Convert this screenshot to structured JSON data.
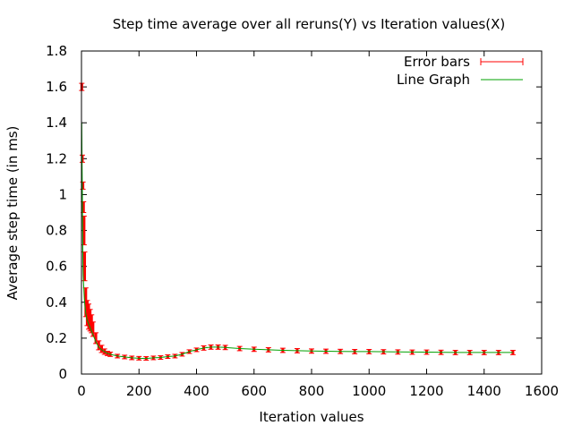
{
  "chart_data": {
    "type": "line",
    "title": "Step time average over all reruns(Y) vs Iteration values(X)",
    "xlabel": "Iteration values",
    "ylabel": "Average step time (in ms)",
    "xlim": [
      0,
      1600
    ],
    "ylim": [
      0,
      1.8
    ],
    "x_ticks": [
      0,
      200,
      400,
      600,
      800,
      1000,
      1200,
      1400,
      1600
    ],
    "y_ticks": [
      0,
      0.2,
      0.4,
      0.6,
      0.8,
      1,
      1.2,
      1.4,
      1.6,
      1.8
    ],
    "x_tick_labels": [
      "0",
      "200",
      "400",
      "600",
      "800",
      "1000",
      "1200",
      "1400",
      "1600"
    ],
    "y_tick_labels": [
      "0",
      "0.2",
      "0.4",
      "0.6",
      "0.8",
      "1",
      "1.2",
      "1.4",
      "1.6",
      "1.8"
    ],
    "grid": false,
    "legend_position": "top-right",
    "legend": [
      "Error bars",
      "Line Graph"
    ],
    "colors": {
      "error_bars": "#ff0000",
      "error_bars_dark": "#a00000",
      "line": "#00a000",
      "axis": "#000000",
      "background": "#ffffff"
    },
    "series": [
      {
        "name": "Error bars",
        "kind": "errorbar",
        "x": [
          1,
          3,
          5,
          7,
          9,
          11,
          15,
          20,
          25,
          30,
          35,
          40,
          50,
          60,
          70,
          80,
          90,
          100,
          125,
          150,
          175,
          200,
          225,
          250,
          275,
          300,
          325,
          350,
          375,
          400,
          425,
          450,
          475,
          500,
          550,
          600,
          650,
          700,
          750,
          800,
          850,
          900,
          950,
          1000,
          1050,
          1100,
          1150,
          1200,
          1250,
          1300,
          1350,
          1400,
          1450,
          1500
        ],
        "y": [
          1.6,
          1.2,
          1.05,
          0.93,
          0.8,
          0.6,
          0.4,
          0.34,
          0.32,
          0.3,
          0.28,
          0.25,
          0.2,
          0.16,
          0.14,
          0.125,
          0.115,
          0.11,
          0.1,
          0.095,
          0.09,
          0.088,
          0.087,
          0.09,
          0.092,
          0.097,
          0.1,
          0.11,
          0.125,
          0.135,
          0.145,
          0.15,
          0.15,
          0.148,
          0.142,
          0.138,
          0.135,
          0.132,
          0.13,
          0.128,
          0.127,
          0.126,
          0.125,
          0.125,
          0.124,
          0.123,
          0.122,
          0.122,
          0.121,
          0.12,
          0.12,
          0.12,
          0.12,
          0.12
        ],
        "err": [
          0.02,
          0.02,
          0.02,
          0.03,
          0.08,
          0.08,
          0.08,
          0.07,
          0.07,
          0.06,
          0.05,
          0.04,
          0.03,
          0.025,
          0.02,
          0.015,
          0.012,
          0.012,
          0.01,
          0.01,
          0.01,
          0.01,
          0.01,
          0.01,
          0.01,
          0.01,
          0.01,
          0.01,
          0.01,
          0.01,
          0.012,
          0.012,
          0.012,
          0.012,
          0.012,
          0.012,
          0.012,
          0.012,
          0.012,
          0.012,
          0.012,
          0.012,
          0.012,
          0.012,
          0.012,
          0.012,
          0.012,
          0.012,
          0.012,
          0.012,
          0.012,
          0.012,
          0.012,
          0.012
        ]
      },
      {
        "name": "Line Graph",
        "kind": "line",
        "x": [
          1,
          2,
          3,
          4,
          5,
          6,
          8,
          10,
          12,
          15,
          20,
          25,
          30,
          40,
          50,
          60,
          70,
          80,
          90,
          100,
          125,
          150,
          175,
          200,
          225,
          250,
          275,
          300,
          325,
          350,
          375,
          400,
          425,
          450,
          475,
          500,
          550,
          600,
          650,
          700,
          750,
          800,
          850,
          900,
          950,
          1000,
          1100,
          1200,
          1300,
          1400,
          1500
        ],
        "y": [
          1.4,
          1.2,
          1.0,
          0.8,
          0.62,
          0.55,
          0.48,
          0.42,
          0.38,
          0.34,
          0.3,
          0.28,
          0.26,
          0.22,
          0.18,
          0.15,
          0.135,
          0.125,
          0.115,
          0.11,
          0.1,
          0.095,
          0.09,
          0.088,
          0.087,
          0.09,
          0.092,
          0.097,
          0.1,
          0.11,
          0.125,
          0.135,
          0.145,
          0.15,
          0.15,
          0.148,
          0.142,
          0.138,
          0.135,
          0.132,
          0.13,
          0.128,
          0.127,
          0.126,
          0.125,
          0.125,
          0.123,
          0.122,
          0.12,
          0.12,
          0.12
        ]
      }
    ]
  }
}
